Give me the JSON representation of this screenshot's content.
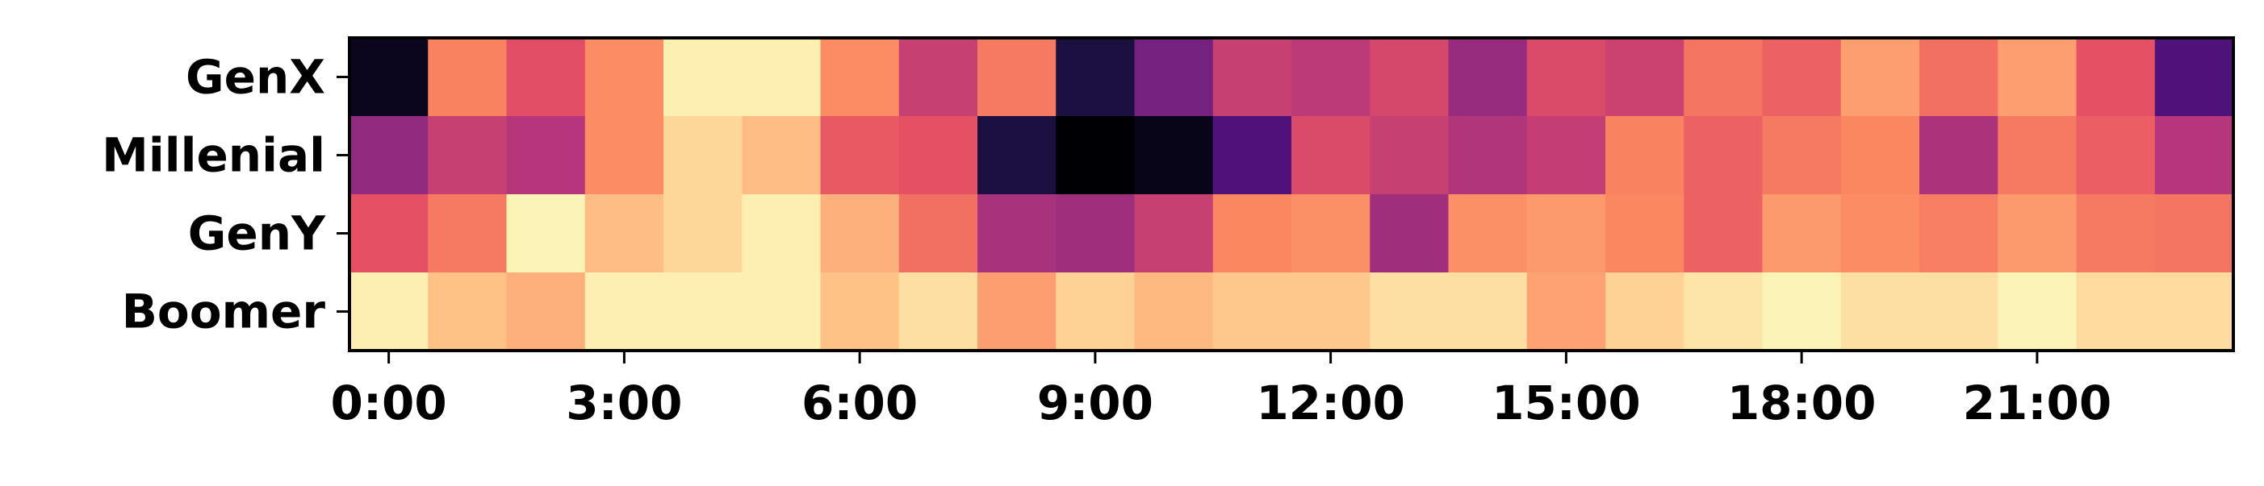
{
  "chart_data": {
    "type": "heatmap",
    "colormap": "magma",
    "title": "",
    "xlabel": "",
    "ylabel": "",
    "rows": [
      "GenX",
      "Millenial",
      "GenY",
      "Boomer"
    ],
    "columns": [
      "0:00",
      "1:00",
      "2:00",
      "3:00",
      "4:00",
      "5:00",
      "6:00",
      "7:00",
      "8:00",
      "9:00",
      "10:00",
      "11:00",
      "12:00",
      "13:00",
      "14:00",
      "15:00",
      "16:00",
      "17:00",
      "18:00",
      "19:00",
      "20:00",
      "21:00",
      "22:00",
      "23:00"
    ],
    "x_tick_labels": [
      "0:00",
      "3:00",
      "6:00",
      "9:00",
      "12:00",
      "15:00",
      "18:00",
      "21:00"
    ],
    "x_tick_columns": [
      0,
      3,
      6,
      9,
      12,
      15,
      18,
      21
    ],
    "value_range": [
      0,
      1
    ],
    "values": [
      [
        0.05,
        0.74,
        0.62,
        0.76,
        0.97,
        0.97,
        0.76,
        0.55,
        0.72,
        0.12,
        0.35,
        0.55,
        0.52,
        0.59,
        0.43,
        0.6,
        0.56,
        0.71,
        0.67,
        0.8,
        0.7,
        0.8,
        0.63,
        0.25
      ],
      [
        0.42,
        0.55,
        0.5,
        0.76,
        0.92,
        0.87,
        0.65,
        0.63,
        0.12,
        0.0,
        0.04,
        0.25,
        0.6,
        0.55,
        0.49,
        0.54,
        0.74,
        0.67,
        0.72,
        0.75,
        0.48,
        0.72,
        0.66,
        0.5
      ],
      [
        0.63,
        0.72,
        0.98,
        0.87,
        0.92,
        0.97,
        0.84,
        0.7,
        0.47,
        0.45,
        0.55,
        0.75,
        0.77,
        0.45,
        0.77,
        0.79,
        0.75,
        0.67,
        0.79,
        0.76,
        0.73,
        0.79,
        0.72,
        0.71
      ],
      [
        0.97,
        0.88,
        0.84,
        0.97,
        0.97,
        0.97,
        0.88,
        0.94,
        0.8,
        0.91,
        0.86,
        0.89,
        0.89,
        0.94,
        0.94,
        0.81,
        0.91,
        0.95,
        0.98,
        0.94,
        0.94,
        0.98,
        0.93,
        0.93
      ]
    ]
  }
}
